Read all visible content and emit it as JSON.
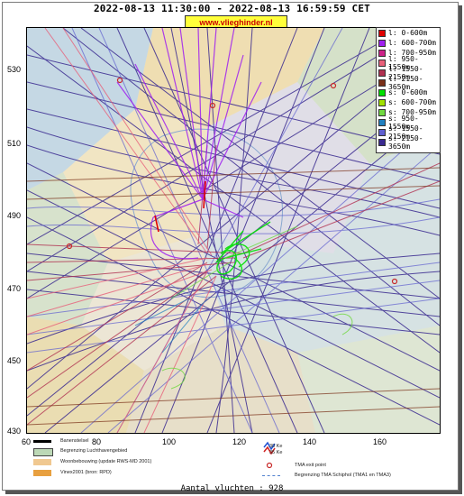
{
  "header": {
    "time_range": "2022-08-13 11:30:00 - 2022-08-13 16:59:59 CET",
    "site": "www.vlieghinder.nl"
  },
  "axes": {
    "y_ticks": [
      "530",
      "510",
      "490",
      "470",
      "450",
      "430"
    ],
    "x_ticks": [
      "60",
      "80",
      "100",
      "120",
      "140",
      "160"
    ]
  },
  "legend": [
    {
      "label": "l: 0-600m",
      "color": "#e00000"
    },
    {
      "label": "l: 600-700m",
      "color": "#a020f0"
    },
    {
      "label": "l: 700-950m",
      "color": "#cc2288"
    },
    {
      "label": "l: 950-1550m",
      "color": "#e8607a"
    },
    {
      "label": "l: 1550-2150m",
      "color": "#b03050"
    },
    {
      "label": "l: 2150-3650m",
      "color": "#7a3018"
    },
    {
      "label": "s: 0-600m",
      "color": "#00e000"
    },
    {
      "label": "s: 600-700m",
      "color": "#a0e000"
    },
    {
      "label": "s: 700-950m",
      "color": "#70d840"
    },
    {
      "label": "s: 950-1550m",
      "color": "#2080c0"
    },
    {
      "label": "s: 1550-2150m",
      "color": "#6060d0"
    },
    {
      "label": "s: 2150-3650m",
      "color": "#3a2a90"
    }
  ],
  "map_legend": {
    "runway": "Banenstelsel",
    "airport_boundary": "Begrenzing Luchthavengebied",
    "housing": "Woonbebouwing (update RWS-MD 2001)",
    "vinex": "Vinex2001 (bron: RPD)",
    "noise_30": "30 Ke",
    "noise_35": "35 Ke",
    "tma_exit": "TMA exit point",
    "tma_boundary": "Begrenzing TMA Schiphol  (TMA1 en TMA3)"
  },
  "footer": {
    "count_text": "Aantal vluchten : 928"
  }
}
